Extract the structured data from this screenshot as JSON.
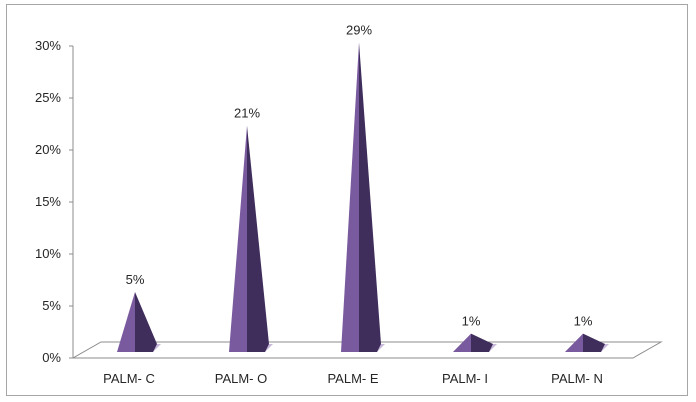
{
  "chart_data": {
    "type": "bar",
    "style": "3d-pyramid",
    "title": "",
    "xlabel": "",
    "ylabel": "",
    "categories": [
      "PALM- C",
      "PALM- O",
      "PALM- E",
      "PALM- I",
      "PALM- N"
    ],
    "values": [
      5,
      21,
      29,
      1,
      1
    ],
    "data_labels": [
      "5%",
      "21%",
      "29%",
      "1%",
      "1%"
    ],
    "ylim": [
      0,
      30
    ],
    "y_ticks": [
      0,
      5,
      10,
      15,
      20,
      25,
      30
    ],
    "y_tick_labels": [
      "0%",
      "5%",
      "10%",
      "15%",
      "20%",
      "25%",
      "30%"
    ],
    "grid": false,
    "legend": "none",
    "colors": {
      "pyramid_front": "#7a5a9e",
      "pyramid_dark": "#3f2d5c",
      "pyramid_light": "#9a7fbd",
      "floor_line": "#8c8c8c",
      "axis": "#8c8c8c",
      "text": "#262626"
    }
  }
}
